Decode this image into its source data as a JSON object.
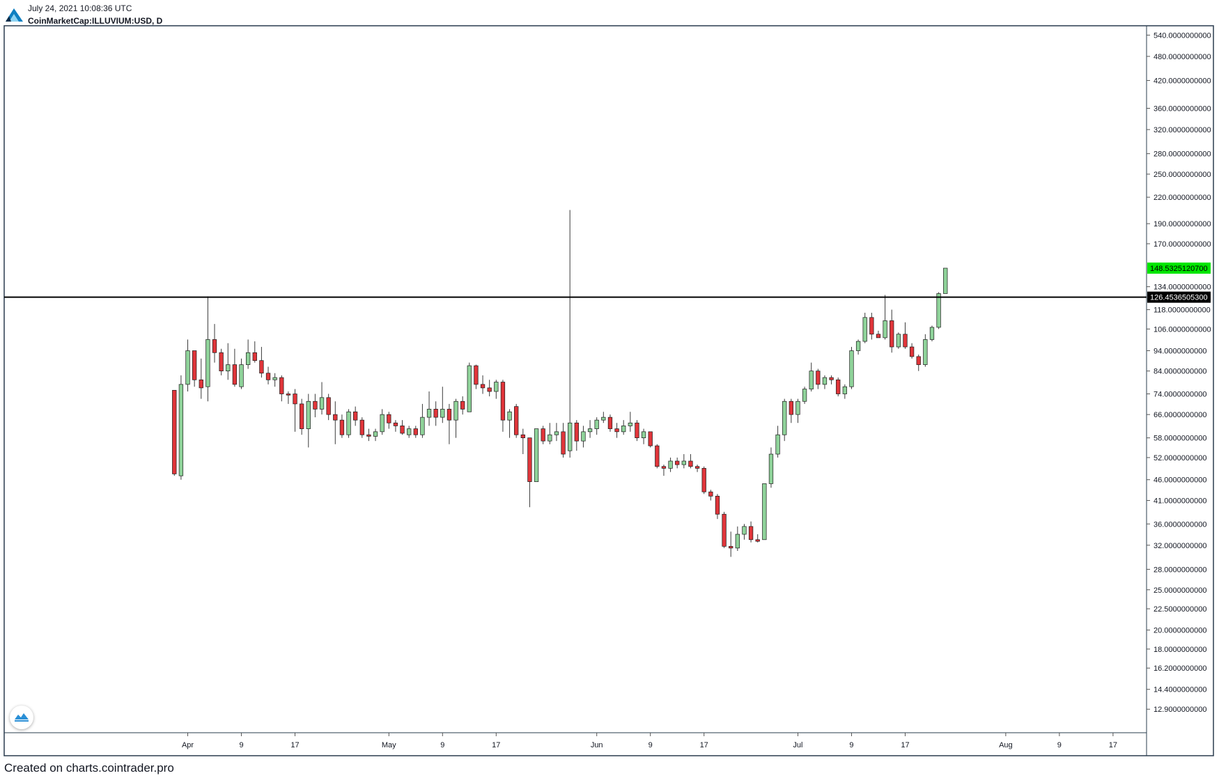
{
  "header": {
    "timestamp": "July 24, 2021 10:08:36 UTC",
    "symbol": "CoinMarketCap:ILLUVIUM:USD, D"
  },
  "footer": {
    "credit": "Created on charts.cointrader.pro"
  },
  "icons": {
    "logo": "cointrader-logo-icon",
    "badge": "cointrader-badge-icon"
  },
  "colors": {
    "up": "#8fd39a",
    "down": "#e0353a",
    "wick": "#3a3a3a",
    "frame": "#2a3c4e",
    "last_price": "#00e600",
    "level_line": "#000000"
  },
  "chart_data": {
    "type": "candlestick",
    "scale": "log",
    "ylim": [
      11.5,
      560
    ],
    "y_ticks": [
      {
        "v": 540,
        "label": "540.0000000000"
      },
      {
        "v": 480,
        "label": "480.0000000000"
      },
      {
        "v": 420,
        "label": "420.0000000000"
      },
      {
        "v": 360,
        "label": "360.0000000000"
      },
      {
        "v": 320,
        "label": "320.0000000000"
      },
      {
        "v": 280,
        "label": "280.0000000000"
      },
      {
        "v": 250,
        "label": "250.0000000000"
      },
      {
        "v": 220,
        "label": "220.0000000000"
      },
      {
        "v": 190,
        "label": "190.0000000000"
      },
      {
        "v": 170,
        "label": "170.0000000000"
      },
      {
        "v": 134,
        "label": "134.0000000000"
      },
      {
        "v": 118,
        "label": "118.0000000000"
      },
      {
        "v": 106,
        "label": "106.0000000000"
      },
      {
        "v": 94,
        "label": "94.0000000000"
      },
      {
        "v": 84,
        "label": "84.0000000000"
      },
      {
        "v": 74,
        "label": "74.0000000000"
      },
      {
        "v": 66,
        "label": "66.0000000000"
      },
      {
        "v": 58,
        "label": "58.0000000000"
      },
      {
        "v": 52,
        "label": "52.0000000000"
      },
      {
        "v": 46,
        "label": "46.0000000000"
      },
      {
        "v": 41,
        "label": "41.0000000000"
      },
      {
        "v": 36,
        "label": "36.0000000000"
      },
      {
        "v": 32,
        "label": "32.0000000000"
      },
      {
        "v": 28,
        "label": "28.0000000000"
      },
      {
        "v": 25,
        "label": "25.0000000000"
      },
      {
        "v": 22.5,
        "label": "22.5000000000"
      },
      {
        "v": 20,
        "label": "20.0000000000"
      },
      {
        "v": 18,
        "label": "18.0000000000"
      },
      {
        "v": 16.2,
        "label": "16.2000000000"
      },
      {
        "v": 14.4,
        "label": "14.4000000000"
      },
      {
        "v": 12.9,
        "label": "12.9000000000"
      }
    ],
    "x_ticks": [
      {
        "date": "2021-04-01",
        "label": "Apr"
      },
      {
        "date": "2021-04-09",
        "label": "9"
      },
      {
        "date": "2021-04-17",
        "label": "17"
      },
      {
        "date": "2021-05-01",
        "label": "May"
      },
      {
        "date": "2021-05-09",
        "label": "9"
      },
      {
        "date": "2021-05-17",
        "label": "17"
      },
      {
        "date": "2021-06-01",
        "label": "Jun"
      },
      {
        "date": "2021-06-09",
        "label": "9"
      },
      {
        "date": "2021-06-17",
        "label": "17"
      },
      {
        "date": "2021-07-01",
        "label": "Jul"
      },
      {
        "date": "2021-07-09",
        "label": "9"
      },
      {
        "date": "2021-07-17",
        "label": "17"
      },
      {
        "date": "2021-08-01",
        "label": "Aug"
      },
      {
        "date": "2021-08-09",
        "label": "9"
      },
      {
        "date": "2021-08-17",
        "label": "17"
      }
    ],
    "x_range": [
      "2021-03-04",
      "2021-08-22"
    ],
    "horizontal_line": {
      "value": 126.45365053,
      "label": "126.4536505300"
    },
    "last_price": {
      "value": 148.53251207,
      "label": "148.5325120700"
    },
    "candles": [
      {
        "date": "2021-03-30",
        "o": 75.5,
        "h": 75.5,
        "l": 47.0,
        "c": 47.5
      },
      {
        "date": "2021-03-31",
        "o": 47.0,
        "h": 82.0,
        "l": 46.0,
        "c": 78.0
      },
      {
        "date": "2021-04-01",
        "o": 78.0,
        "h": 100.0,
        "l": 75.0,
        "c": 94.0
      },
      {
        "date": "2021-04-02",
        "o": 94.0,
        "h": 94.0,
        "l": 77.0,
        "c": 80.0
      },
      {
        "date": "2021-04-03",
        "o": 80.0,
        "h": 90.0,
        "l": 72.0,
        "c": 76.5
      },
      {
        "date": "2021-04-04",
        "o": 77.0,
        "h": 127.0,
        "l": 71.0,
        "c": 100.0
      },
      {
        "date": "2021-04-05",
        "o": 100.0,
        "h": 109.0,
        "l": 88.0,
        "c": 93.0
      },
      {
        "date": "2021-04-06",
        "o": 93.0,
        "h": 95.0,
        "l": 82.0,
        "c": 84.0
      },
      {
        "date": "2021-04-07",
        "o": 84.0,
        "h": 98.0,
        "l": 80.0,
        "c": 87.0
      },
      {
        "date": "2021-04-08",
        "o": 87.0,
        "h": 95.0,
        "l": 77.0,
        "c": 78.0
      },
      {
        "date": "2021-04-09",
        "o": 77.0,
        "h": 90.0,
        "l": 76.0,
        "c": 87.0
      },
      {
        "date": "2021-04-10",
        "o": 87.0,
        "h": 100.0,
        "l": 85.0,
        "c": 93.0
      },
      {
        "date": "2021-04-11",
        "o": 93.0,
        "h": 99.0,
        "l": 88.0,
        "c": 89.0
      },
      {
        "date": "2021-04-12",
        "o": 89.0,
        "h": 96.0,
        "l": 81.0,
        "c": 83.0
      },
      {
        "date": "2021-04-13",
        "o": 83.0,
        "h": 86.0,
        "l": 78.0,
        "c": 80.0
      },
      {
        "date": "2021-04-14",
        "o": 80.0,
        "h": 83.0,
        "l": 77.0,
        "c": 81.0
      },
      {
        "date": "2021-04-15",
        "o": 81.0,
        "h": 82.0,
        "l": 71.0,
        "c": 74.0
      },
      {
        "date": "2021-04-16",
        "o": 74.0,
        "h": 75.0,
        "l": 70.0,
        "c": 73.5
      },
      {
        "date": "2021-04-17",
        "o": 74.0,
        "h": 76.0,
        "l": 60.0,
        "c": 70.0
      },
      {
        "date": "2021-04-18",
        "o": 70.0,
        "h": 72.0,
        "l": 59.0,
        "c": 61.0
      },
      {
        "date": "2021-04-19",
        "o": 61.0,
        "h": 74.0,
        "l": 55.0,
        "c": 71.0
      },
      {
        "date": "2021-04-20",
        "o": 71.0,
        "h": 74.0,
        "l": 65.0,
        "c": 68.0
      },
      {
        "date": "2021-04-21",
        "o": 68.0,
        "h": 79.0,
        "l": 66.0,
        "c": 72.5
      },
      {
        "date": "2021-04-22",
        "o": 72.5,
        "h": 74.0,
        "l": 64.0,
        "c": 66.0
      },
      {
        "date": "2021-04-23",
        "o": 66.0,
        "h": 71.0,
        "l": 56.0,
        "c": 64.0
      },
      {
        "date": "2021-04-24",
        "o": 64.0,
        "h": 66.0,
        "l": 58.0,
        "c": 59.0
      },
      {
        "date": "2021-04-25",
        "o": 59.0,
        "h": 68.0,
        "l": 58.0,
        "c": 67.0
      },
      {
        "date": "2021-04-26",
        "o": 67.0,
        "h": 69.0,
        "l": 62.0,
        "c": 64.0
      },
      {
        "date": "2021-04-27",
        "o": 64.0,
        "h": 65.0,
        "l": 58.0,
        "c": 59.0
      },
      {
        "date": "2021-04-28",
        "o": 59.0,
        "h": 61.0,
        "l": 57.0,
        "c": 58.5
      },
      {
        "date": "2021-04-29",
        "o": 58.5,
        "h": 61.0,
        "l": 57.0,
        "c": 60.0
      },
      {
        "date": "2021-04-30",
        "o": 60.0,
        "h": 68.0,
        "l": 59.0,
        "c": 66.0
      },
      {
        "date": "2021-05-01",
        "o": 66.0,
        "h": 67.0,
        "l": 61.0,
        "c": 63.0
      },
      {
        "date": "2021-05-02",
        "o": 63.0,
        "h": 64.0,
        "l": 60.0,
        "c": 62.0
      },
      {
        "date": "2021-05-03",
        "o": 62.0,
        "h": 64.0,
        "l": 59.0,
        "c": 59.5
      },
      {
        "date": "2021-05-04",
        "o": 59.0,
        "h": 62.0,
        "l": 58.0,
        "c": 61.0
      },
      {
        "date": "2021-05-05",
        "o": 61.0,
        "h": 62.0,
        "l": 58.0,
        "c": 59.0
      },
      {
        "date": "2021-05-06",
        "o": 59.0,
        "h": 70.0,
        "l": 58.0,
        "c": 65.0
      },
      {
        "date": "2021-05-07",
        "o": 65.0,
        "h": 75.0,
        "l": 62.0,
        "c": 68.0
      },
      {
        "date": "2021-05-08",
        "o": 68.0,
        "h": 71.0,
        "l": 62.0,
        "c": 65.0
      },
      {
        "date": "2021-05-09",
        "o": 65.0,
        "h": 77.0,
        "l": 63.0,
        "c": 68.0
      },
      {
        "date": "2021-05-10",
        "o": 68.0,
        "h": 70.0,
        "l": 56.0,
        "c": 64.0
      },
      {
        "date": "2021-05-11",
        "o": 64.0,
        "h": 72.0,
        "l": 58.0,
        "c": 71.0
      },
      {
        "date": "2021-05-12",
        "o": 71.0,
        "h": 73.0,
        "l": 66.0,
        "c": 68.0
      },
      {
        "date": "2021-05-13",
        "o": 67.0,
        "h": 88.0,
        "l": 67.0,
        "c": 86.5
      },
      {
        "date": "2021-05-14",
        "o": 86.5,
        "h": 87.0,
        "l": 76.0,
        "c": 78.0
      },
      {
        "date": "2021-05-15",
        "o": 78.0,
        "h": 82.0,
        "l": 74.0,
        "c": 76.5
      },
      {
        "date": "2021-05-16",
        "o": 76.5,
        "h": 80.0,
        "l": 73.0,
        "c": 75.0
      },
      {
        "date": "2021-05-17",
        "o": 75.0,
        "h": 80.0,
        "l": 72.0,
        "c": 79.0
      },
      {
        "date": "2021-05-18",
        "o": 79.0,
        "h": 80.0,
        "l": 60.0,
        "c": 64.0
      },
      {
        "date": "2021-05-19",
        "o": 64.0,
        "h": 68.0,
        "l": 58.0,
        "c": 67.0
      },
      {
        "date": "2021-05-20",
        "o": 69.0,
        "h": 70.0,
        "l": 58.0,
        "c": 59.0
      },
      {
        "date": "2021-05-21",
        "o": 59.0,
        "h": 61.0,
        "l": 53.0,
        "c": 58.0
      },
      {
        "date": "2021-05-22",
        "o": 58.0,
        "h": 58.0,
        "l": 39.5,
        "c": 45.5
      },
      {
        "date": "2021-05-23",
        "o": 45.5,
        "h": 61.0,
        "l": 45.5,
        "c": 61.0
      },
      {
        "date": "2021-05-24",
        "o": 61.0,
        "h": 62.0,
        "l": 56.0,
        "c": 57.0
      },
      {
        "date": "2021-05-25",
        "o": 57.0,
        "h": 63.0,
        "l": 56.0,
        "c": 59.0
      },
      {
        "date": "2021-05-26",
        "o": 59.0,
        "h": 63.0,
        "l": 57.0,
        "c": 60.0
      },
      {
        "date": "2021-05-27",
        "o": 60.0,
        "h": 63.0,
        "l": 52.0,
        "c": 53.0
      },
      {
        "date": "2021-05-28",
        "o": 54.0,
        "h": 205.0,
        "l": 52.0,
        "c": 63.0
      },
      {
        "date": "2021-05-29",
        "o": 63.0,
        "h": 64.0,
        "l": 54.0,
        "c": 57.0
      },
      {
        "date": "2021-05-30",
        "o": 57.0,
        "h": 62.0,
        "l": 55.0,
        "c": 60.0
      },
      {
        "date": "2021-05-31",
        "o": 60.0,
        "h": 64.0,
        "l": 58.0,
        "c": 61.0
      },
      {
        "date": "2021-06-01",
        "o": 61.0,
        "h": 65.0,
        "l": 59.0,
        "c": 64.0
      },
      {
        "date": "2021-06-02",
        "o": 64.0,
        "h": 67.0,
        "l": 63.0,
        "c": 65.0
      },
      {
        "date": "2021-06-03",
        "o": 65.0,
        "h": 66.0,
        "l": 60.0,
        "c": 61.0
      },
      {
        "date": "2021-06-04",
        "o": 61.0,
        "h": 63.0,
        "l": 58.0,
        "c": 60.0
      },
      {
        "date": "2021-06-05",
        "o": 60.0,
        "h": 64.0,
        "l": 59.0,
        "c": 62.0
      },
      {
        "date": "2021-06-06",
        "o": 62.0,
        "h": 67.0,
        "l": 60.0,
        "c": 63.0
      },
      {
        "date": "2021-06-07",
        "o": 63.0,
        "h": 64.0,
        "l": 57.0,
        "c": 58.0
      },
      {
        "date": "2021-06-08",
        "o": 58.0,
        "h": 61.0,
        "l": 56.0,
        "c": 60.0
      },
      {
        "date": "2021-06-09",
        "o": 60.0,
        "h": 60.0,
        "l": 55.0,
        "c": 55.5
      },
      {
        "date": "2021-06-10",
        "o": 55.5,
        "h": 56.0,
        "l": 49.0,
        "c": 49.5
      },
      {
        "date": "2021-06-11",
        "o": 49.5,
        "h": 50.0,
        "l": 47.0,
        "c": 49.0
      },
      {
        "date": "2021-06-12",
        "o": 49.0,
        "h": 52.0,
        "l": 48.0,
        "c": 51.0
      },
      {
        "date": "2021-06-13",
        "o": 51.0,
        "h": 52.0,
        "l": 49.0,
        "c": 50.0
      },
      {
        "date": "2021-06-14",
        "o": 50.0,
        "h": 53.0,
        "l": 49.0,
        "c": 51.0
      },
      {
        "date": "2021-06-15",
        "o": 51.0,
        "h": 53.0,
        "l": 49.0,
        "c": 49.5
      },
      {
        "date": "2021-06-16",
        "o": 49.5,
        "h": 50.0,
        "l": 48.0,
        "c": 49.0
      },
      {
        "date": "2021-06-17",
        "o": 49.0,
        "h": 49.5,
        "l": 42.5,
        "c": 43.0
      },
      {
        "date": "2021-06-18",
        "o": 43.0,
        "h": 43.5,
        "l": 41.0,
        "c": 42.0
      },
      {
        "date": "2021-06-19",
        "o": 42.0,
        "h": 42.5,
        "l": 37.0,
        "c": 38.0
      },
      {
        "date": "2021-06-20",
        "o": 38.0,
        "h": 38.5,
        "l": 31.5,
        "c": 31.8
      },
      {
        "date": "2021-06-21",
        "o": 31.8,
        "h": 34.5,
        "l": 30.0,
        "c": 31.5
      },
      {
        "date": "2021-06-22",
        "o": 31.5,
        "h": 35.5,
        "l": 31.0,
        "c": 34.0
      },
      {
        "date": "2021-06-23",
        "o": 34.0,
        "h": 36.0,
        "l": 33.0,
        "c": 35.5
      },
      {
        "date": "2021-06-24",
        "o": 35.5,
        "h": 36.5,
        "l": 32.5,
        "c": 33.0
      },
      {
        "date": "2021-06-25",
        "o": 33.0,
        "h": 34.0,
        "l": 32.5,
        "c": 32.7
      },
      {
        "date": "2021-06-26",
        "o": 33.0,
        "h": 45.0,
        "l": 33.0,
        "c": 45.0
      },
      {
        "date": "2021-06-27",
        "o": 45.0,
        "h": 55.0,
        "l": 44.0,
        "c": 53.0
      },
      {
        "date": "2021-06-28",
        "o": 53.0,
        "h": 62.0,
        "l": 52.0,
        "c": 59.0
      },
      {
        "date": "2021-06-29",
        "o": 59.0,
        "h": 72.0,
        "l": 57.0,
        "c": 71.0
      },
      {
        "date": "2021-06-30",
        "o": 71.0,
        "h": 72.0,
        "l": 63.0,
        "c": 66.0
      },
      {
        "date": "2021-07-01",
        "o": 66.0,
        "h": 72.0,
        "l": 63.0,
        "c": 71.0
      },
      {
        "date": "2021-07-02",
        "o": 71.0,
        "h": 77.0,
        "l": 70.0,
        "c": 76.0
      },
      {
        "date": "2021-07-03",
        "o": 76.0,
        "h": 88.0,
        "l": 75.0,
        "c": 84.0
      },
      {
        "date": "2021-07-04",
        "o": 84.0,
        "h": 85.0,
        "l": 76.0,
        "c": 78.0
      },
      {
        "date": "2021-07-05",
        "o": 78.0,
        "h": 82.0,
        "l": 76.0,
        "c": 81.0
      },
      {
        "date": "2021-07-06",
        "o": 81.0,
        "h": 82.0,
        "l": 78.0,
        "c": 80.0
      },
      {
        "date": "2021-07-07",
        "o": 80.0,
        "h": 81.0,
        "l": 73.0,
        "c": 74.0
      },
      {
        "date": "2021-07-08",
        "o": 74.0,
        "h": 78.0,
        "l": 72.0,
        "c": 77.0
      },
      {
        "date": "2021-07-09",
        "o": 77.0,
        "h": 96.0,
        "l": 76.0,
        "c": 94.0
      },
      {
        "date": "2021-07-10",
        "o": 94.0,
        "h": 100.0,
        "l": 92.0,
        "c": 99.0
      },
      {
        "date": "2021-07-11",
        "o": 99.0,
        "h": 116.0,
        "l": 98.0,
        "c": 113.0
      },
      {
        "date": "2021-07-12",
        "o": 113.0,
        "h": 116.0,
        "l": 100.0,
        "c": 103.0
      },
      {
        "date": "2021-07-13",
        "o": 103.0,
        "h": 105.0,
        "l": 101.0,
        "c": 101.0
      },
      {
        "date": "2021-07-14",
        "o": 101.0,
        "h": 128.0,
        "l": 100.0,
        "c": 111.0
      },
      {
        "date": "2021-07-15",
        "o": 111.0,
        "h": 118.0,
        "l": 93.0,
        "c": 96.0
      },
      {
        "date": "2021-07-16",
        "o": 96.0,
        "h": 104.0,
        "l": 95.0,
        "c": 103.0
      },
      {
        "date": "2021-07-17",
        "o": 103.0,
        "h": 110.0,
        "l": 95.0,
        "c": 96.0
      },
      {
        "date": "2021-07-18",
        "o": 96.0,
        "h": 98.0,
        "l": 90.0,
        "c": 91.0
      },
      {
        "date": "2021-07-19",
        "o": 91.0,
        "h": 92.0,
        "l": 84.0,
        "c": 87.0
      },
      {
        "date": "2021-07-20",
        "o": 87.0,
        "h": 103.0,
        "l": 86.0,
        "c": 100.0
      },
      {
        "date": "2021-07-21",
        "o": 100.0,
        "h": 108.0,
        "l": 99.0,
        "c": 107.0
      },
      {
        "date": "2021-07-22",
        "o": 107.0,
        "h": 130.0,
        "l": 106.0,
        "c": 129.0
      },
      {
        "date": "2021-07-23",
        "o": 129.0,
        "h": 148.5,
        "l": 129.0,
        "c": 148.5
      }
    ]
  }
}
